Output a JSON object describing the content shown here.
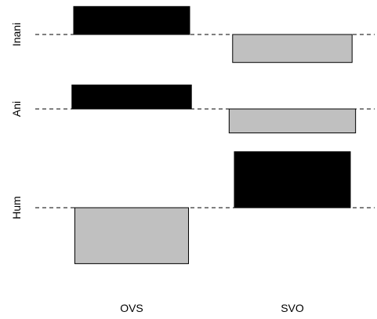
{
  "chart_data": {
    "type": "bar",
    "subtype": "association-plot",
    "title": "",
    "xlabel": "",
    "ylabel": "",
    "categories": [
      "OVS",
      "SVO"
    ],
    "rows": [
      "Inani",
      "Ani",
      "Hum"
    ],
    "residuals": [
      {
        "row": "Inani",
        "values": [
          1.4,
          -1.4
        ]
      },
      {
        "row": "Ani",
        "values": [
          1.2,
          -1.2
        ]
      },
      {
        "row": "Hum",
        "values": [
          -2.8,
          2.8
        ]
      }
    ],
    "relative_widths": {
      "Inani": [
        1.0,
        1.03
      ],
      "Ani": [
        1.03,
        1.09
      ],
      "Hum": [
        0.98,
        1.0
      ]
    },
    "colors": {
      "positive": "#000000",
      "negative": "#c0c0c0",
      "baseline": "#000000"
    },
    "grid": false,
    "legend": "none"
  }
}
